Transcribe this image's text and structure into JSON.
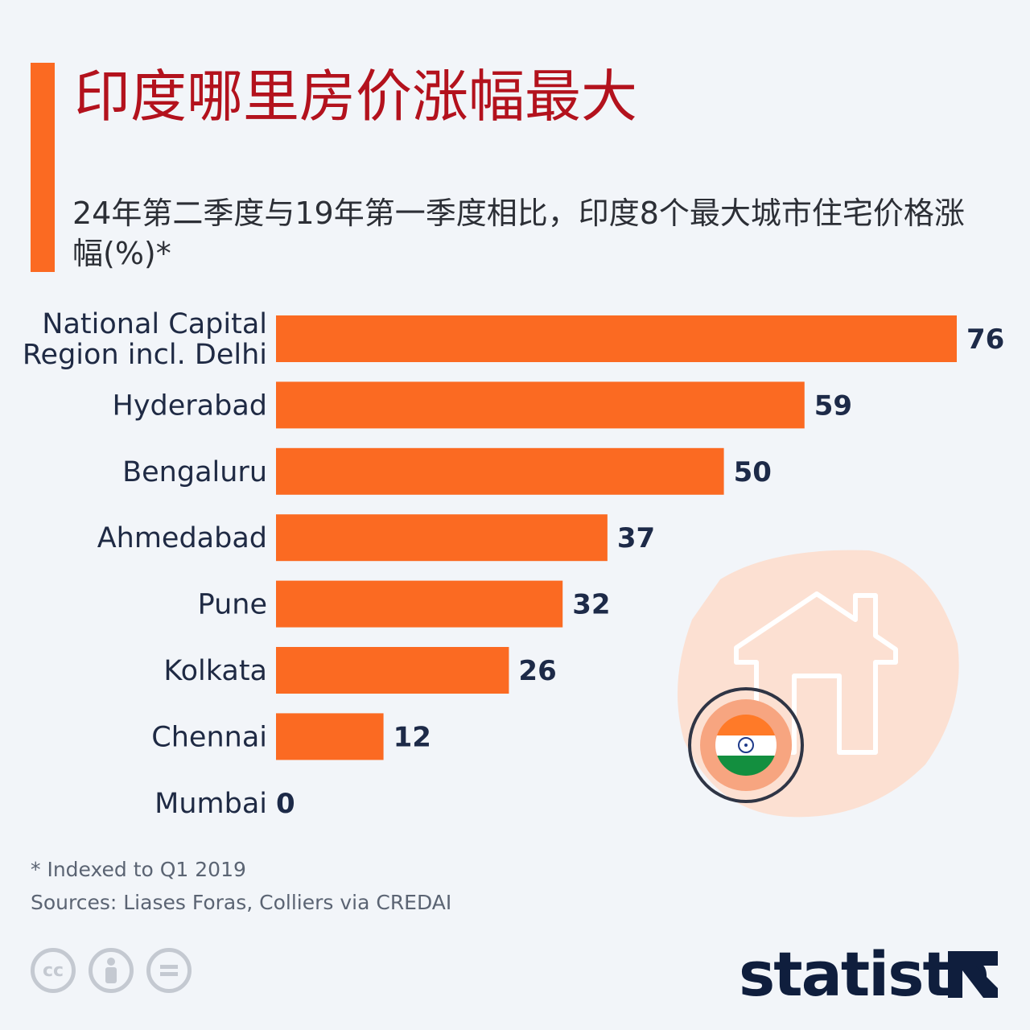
{
  "header": {
    "title": "印度哪里房价涨幅最大",
    "subtitle": "24年第二季度与19年第一季度相比，印度8个最大城市住宅价格涨幅(%)*"
  },
  "chart_data": {
    "type": "bar",
    "orientation": "horizontal",
    "categories": [
      [
        "National Capital",
        "Region incl. Delhi"
      ],
      [
        "Hyderabad"
      ],
      [
        "Bengaluru"
      ],
      [
        "Ahmedabad"
      ],
      [
        "Pune"
      ],
      [
        "Kolkata"
      ],
      [
        "Chennai"
      ],
      [
        "Mumbai"
      ]
    ],
    "values": [
      76,
      59,
      50,
      37,
      32,
      26,
      12,
      0
    ],
    "xlim": [
      0,
      76
    ],
    "grid": false,
    "legend": "none"
  },
  "footer": {
    "note": "* Indexed to Q1 2019",
    "source": "Sources: Liases Foras, Colliers via CREDAI",
    "license_icons": [
      "cc-icon",
      "by-icon",
      "nd-icon"
    ],
    "brand": "statista"
  },
  "colors": {
    "accent": "#fb6a22",
    "title": "#b3121d",
    "bar": "#fb6a22",
    "value_text": "#1d2a48",
    "background": "#f2f5f9"
  }
}
